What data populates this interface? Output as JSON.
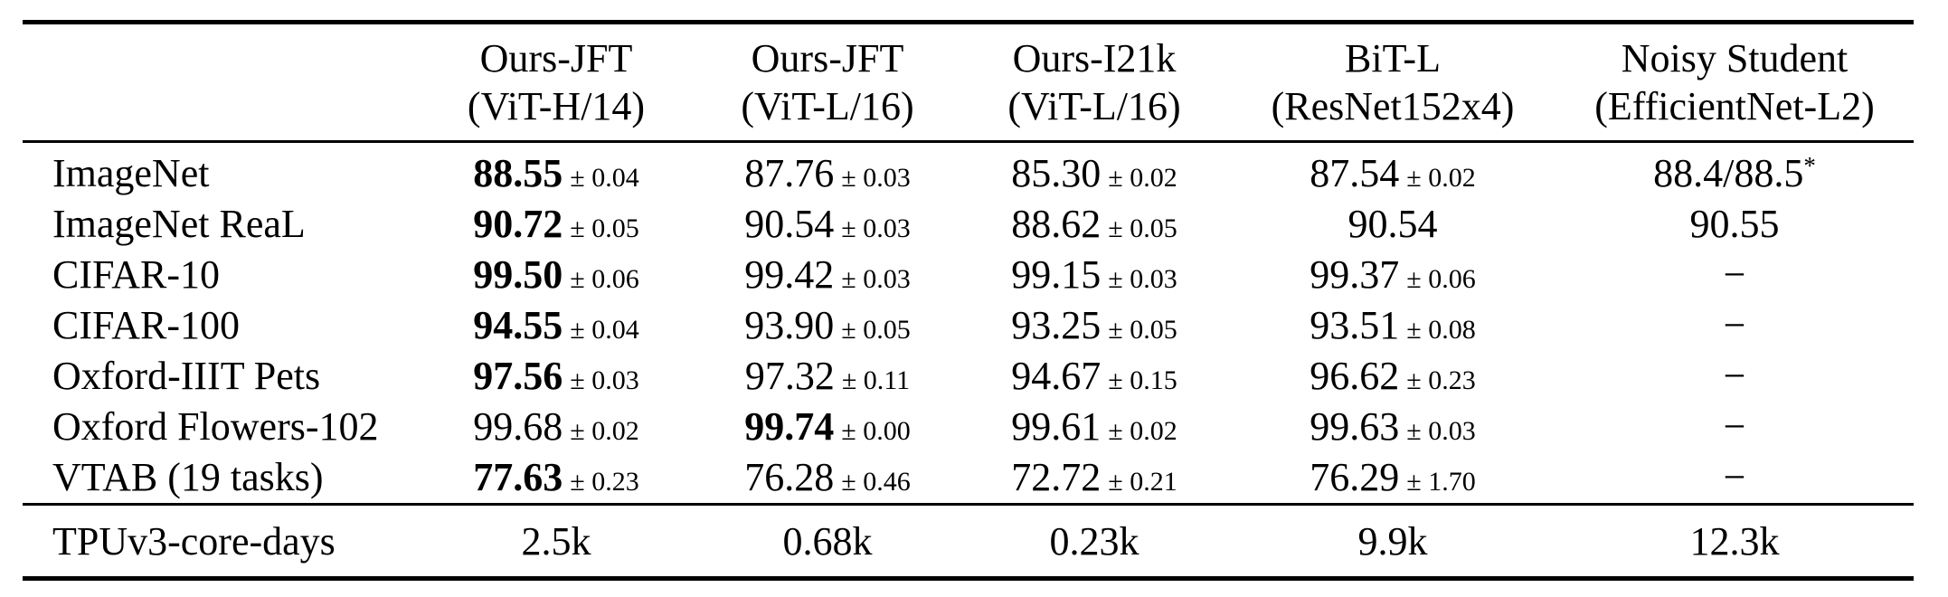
{
  "table": {
    "header": {
      "columns": [
        {
          "line1": "Ours-JFT",
          "line2": "(ViT-H/14)"
        },
        {
          "line1": "Ours-JFT",
          "line2": "(ViT-L/16)"
        },
        {
          "line1": "Ours-I21k",
          "line2": "(ViT-L/16)"
        },
        {
          "line1": "BiT-L",
          "line2": "(ResNet152x4)"
        },
        {
          "line1": "Noisy Student",
          "line2": "(EfficientNet-L2)"
        }
      ]
    },
    "rows": [
      {
        "label": "ImageNet",
        "cells": [
          {
            "value": "88.55",
            "pm": "0.04",
            "bold": true
          },
          {
            "value": "87.76",
            "pm": "0.03"
          },
          {
            "value": "85.30",
            "pm": "0.02"
          },
          {
            "value": "87.54",
            "pm": "0.02"
          },
          {
            "value": "88.4/88.5",
            "sup": "*"
          }
        ]
      },
      {
        "label": "ImageNet ReaL",
        "cells": [
          {
            "value": "90.72",
            "pm": "0.05",
            "bold": true
          },
          {
            "value": "90.54",
            "pm": "0.03"
          },
          {
            "value": "88.62",
            "pm": "0.05"
          },
          {
            "value": "90.54"
          },
          {
            "value": "90.55"
          }
        ]
      },
      {
        "label": "CIFAR-10",
        "cells": [
          {
            "value": "99.50",
            "pm": "0.06",
            "bold": true
          },
          {
            "value": "99.42",
            "pm": "0.03"
          },
          {
            "value": "99.15",
            "pm": "0.03"
          },
          {
            "value": "99.37",
            "pm": "0.06"
          },
          {
            "value": "−"
          }
        ]
      },
      {
        "label": "CIFAR-100",
        "cells": [
          {
            "value": "94.55",
            "pm": "0.04",
            "bold": true
          },
          {
            "value": "93.90",
            "pm": "0.05"
          },
          {
            "value": "93.25",
            "pm": "0.05"
          },
          {
            "value": "93.51",
            "pm": "0.08"
          },
          {
            "value": "−"
          }
        ]
      },
      {
        "label": "Oxford-IIIT Pets",
        "cells": [
          {
            "value": "97.56",
            "pm": "0.03",
            "bold": true
          },
          {
            "value": "97.32",
            "pm": "0.11"
          },
          {
            "value": "94.67",
            "pm": "0.15"
          },
          {
            "value": "96.62",
            "pm": "0.23"
          },
          {
            "value": "−"
          }
        ]
      },
      {
        "label": "Oxford Flowers-102",
        "cells": [
          {
            "value": "99.68",
            "pm": "0.02"
          },
          {
            "value": "99.74",
            "pm": "0.00",
            "bold": true
          },
          {
            "value": "99.61",
            "pm": "0.02"
          },
          {
            "value": "99.63",
            "pm": "0.03"
          },
          {
            "value": "−"
          }
        ]
      },
      {
        "label": "VTAB (19 tasks)",
        "cells": [
          {
            "value": "77.63",
            "pm": "0.23",
            "bold": true
          },
          {
            "value": "76.28",
            "pm": "0.46"
          },
          {
            "value": "72.72",
            "pm": "0.21"
          },
          {
            "value": "76.29",
            "pm": "1.70"
          },
          {
            "value": "−"
          }
        ]
      }
    ],
    "footer": {
      "label": "TPUv3-core-days",
      "cells": [
        "2.5k",
        "0.68k",
        "0.23k",
        "9.9k",
        "12.3k"
      ]
    },
    "colors": {
      "text": "#000000",
      "background": "#ffffff",
      "rule": "#000000"
    }
  }
}
